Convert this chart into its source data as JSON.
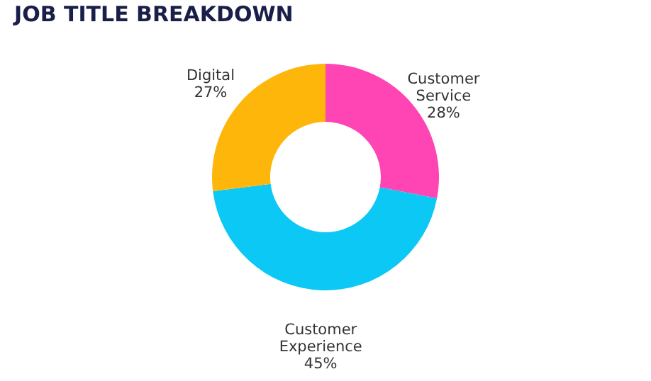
{
  "chart_data": {
    "type": "donut",
    "title": "JOB TITLE BREAKDOWN",
    "categories": [
      "Customer Service",
      "Customer Experience",
      "Digital"
    ],
    "values": [
      28,
      45,
      27
    ],
    "value_labels": [
      "28%",
      "45%",
      "27%"
    ],
    "colors": [
      "#ff44b4",
      "#0bc8f4",
      "#ffb60a"
    ],
    "legend": false
  }
}
